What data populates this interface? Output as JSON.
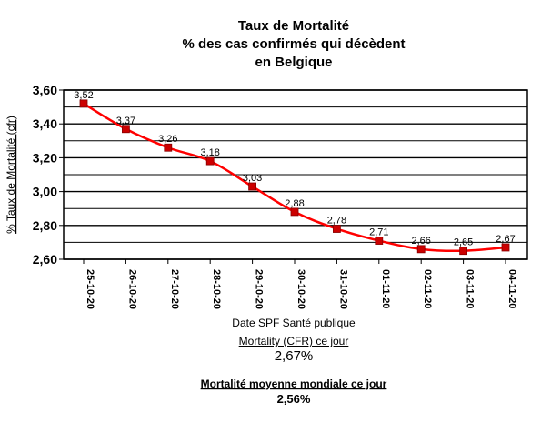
{
  "chart_data": {
    "type": "line",
    "title_lines": [
      "Taux de Mortalité",
      "% des cas confirmés qui décèdent",
      "en Belgique"
    ],
    "xlabel": "Date SPF Santé publique",
    "ylabel": "% Taux de Mortalité (cfr)",
    "categories": [
      "25-10-20",
      "26-10-20",
      "27-10-20",
      "28-10-20",
      "29-10-20",
      "30-10-20",
      "31-10-20",
      "01-11-20",
      "02-11-20",
      "03-11-20",
      "04-11-20"
    ],
    "series": [
      {
        "values": [
          3.52,
          3.37,
          3.26,
          3.18,
          3.03,
          2.88,
          2.78,
          2.71,
          2.66,
          2.65,
          2.67
        ],
        "labels": [
          "3,52",
          "3,37",
          "3,26",
          "3,18",
          "3,03",
          "2,88",
          "2,78",
          "2,71",
          "2,66",
          "2,65",
          "2,67"
        ],
        "color": "#ff0000",
        "marker_color": "#cc0000"
      }
    ],
    "ylim": [
      2.6,
      3.6
    ],
    "yticks": [
      2.6,
      2.8,
      3.0,
      3.2,
      3.4,
      3.6
    ],
    "ytick_labels": [
      "2,60",
      "2,80",
      "3,00",
      "3,20",
      "3,40",
      "3,60"
    ],
    "grid": "horizontal",
    "legend": "none"
  },
  "notes": {
    "cfr_label": "Mortality (CFR) ce jour",
    "cfr_value": "2,67%",
    "world_label": "Mortalité moyenne mondiale ce jour",
    "world_value": "2,56%"
  }
}
